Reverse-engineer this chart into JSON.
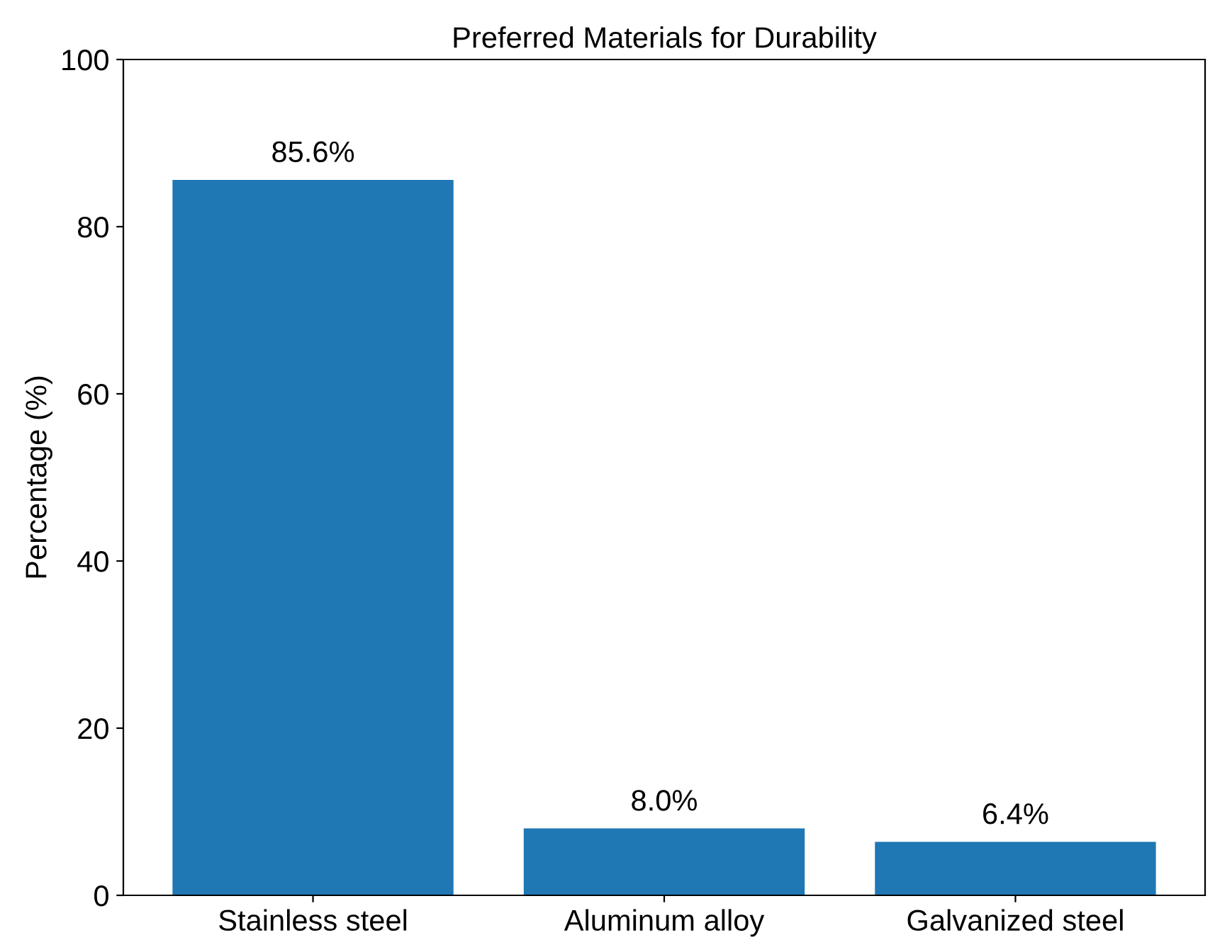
{
  "chart_data": {
    "type": "bar",
    "title": "Preferred Materials for Durability",
    "ylabel": "Percentage (%)",
    "categories": [
      "Stainless steel",
      "Aluminum alloy",
      "Galvanized steel"
    ],
    "values": [
      85.6,
      8.0,
      6.4
    ],
    "value_labels": [
      "85.6%",
      "8.0%",
      "6.4%"
    ],
    "color": "#1f77b4",
    "ylim": [
      0,
      100
    ],
    "yticks": [
      0,
      20,
      40,
      60,
      80,
      100
    ],
    "grid": false,
    "legend": false
  }
}
